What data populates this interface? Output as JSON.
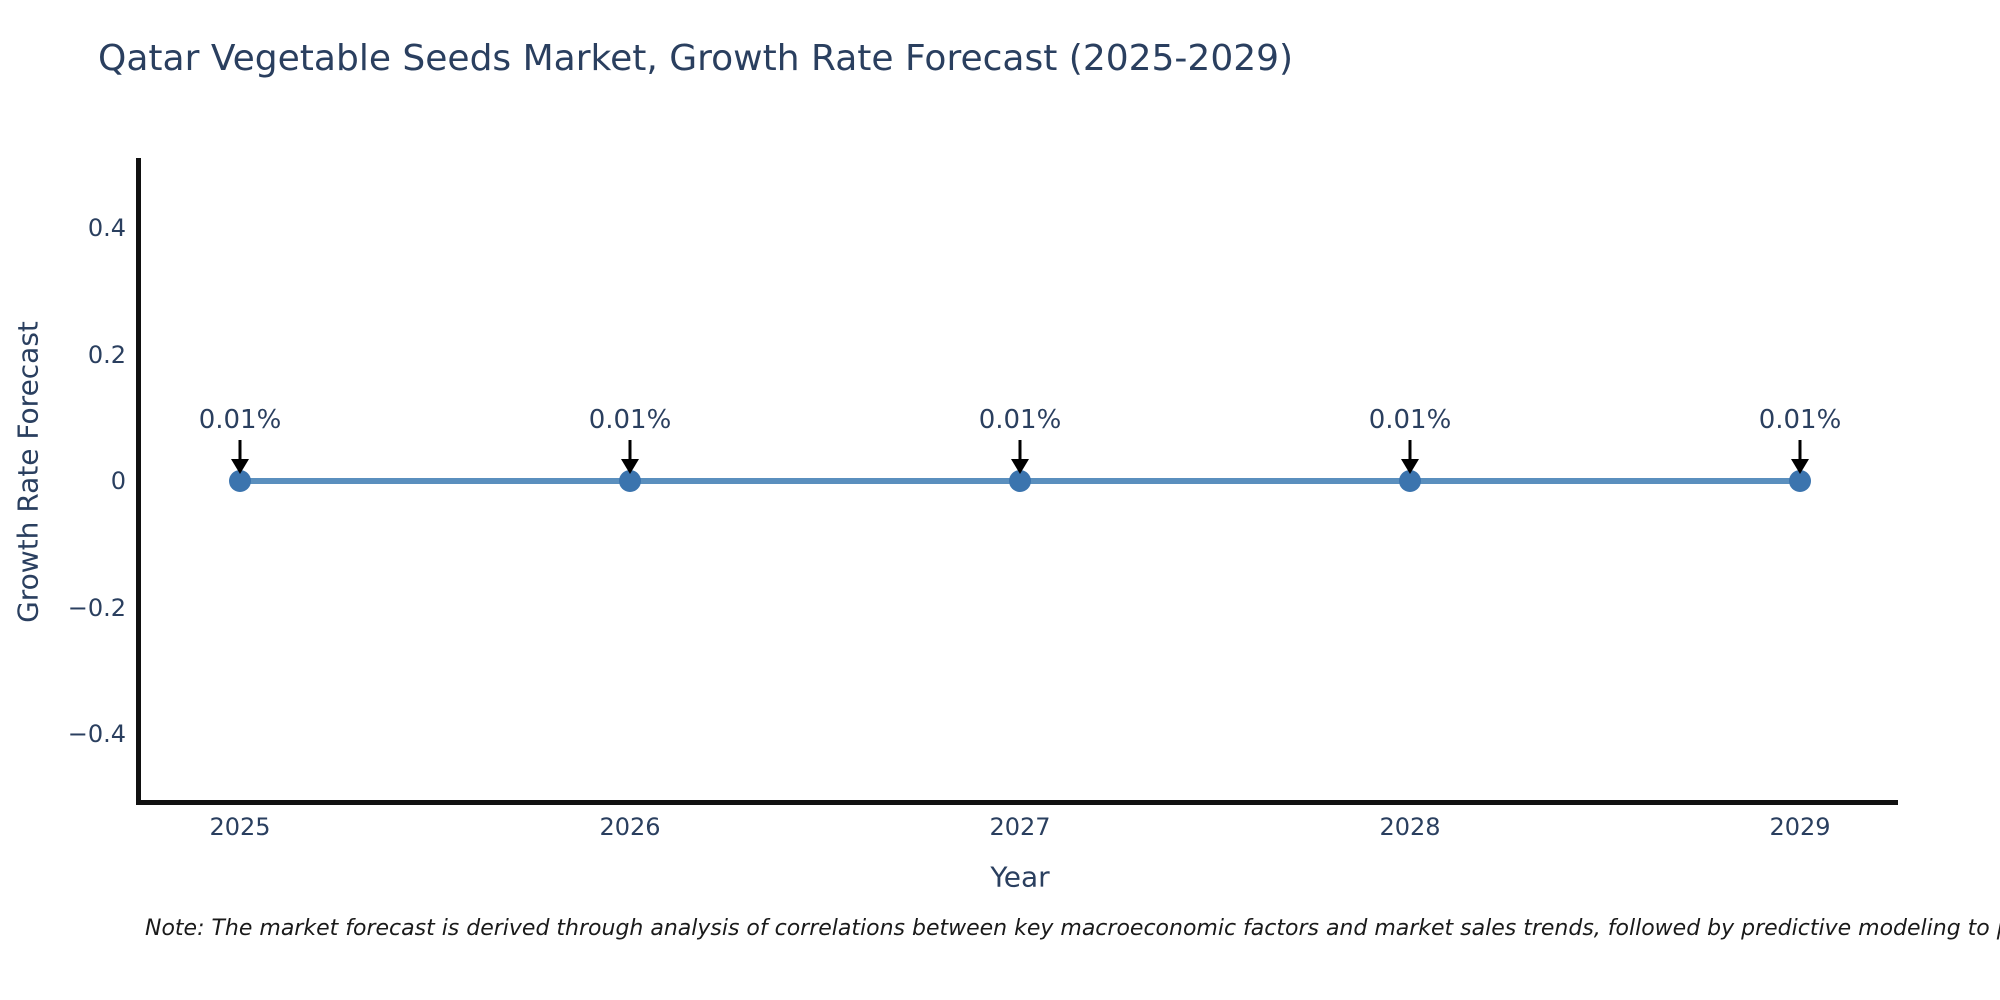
{
  "chart_data": {
    "type": "line",
    "title": "Qatar Vegetable Seeds Market, Growth Rate Forecast (2025-2029)",
    "xlabel": "Year",
    "ylabel": "Growth Rate Forecast",
    "x": [
      2025,
      2026,
      2027,
      2028,
      2029
    ],
    "series": [
      {
        "name": "Growth Rate Forecast",
        "values": [
          0.0001,
          0.0001,
          0.0001,
          0.0001,
          0.0001
        ],
        "point_labels": [
          "0.01%",
          "0.01%",
          "0.01%",
          "0.01%",
          "0.01%"
        ]
      }
    ],
    "yticks": {
      "values": [
        0.4,
        0.2,
        0,
        -0.2,
        -0.4
      ],
      "labels": [
        "0.4",
        "0.2",
        "0",
        "−0.2",
        "−0.4"
      ]
    },
    "ylim": [
      -0.46,
      0.51
    ],
    "grid": false,
    "legend": "none",
    "annotations": "black down-arrows from each point label to its marker",
    "colors": {
      "text": "#2a3f5f",
      "axis": "#111111",
      "line": "#5a8fbe",
      "marker": "#3b74ae",
      "arrow": "#000000"
    }
  },
  "footnote": "Note: The market forecast is derived through analysis of correlations between key macroeconomic factors and market sales trends, followed by predictive modeling to project future sa"
}
